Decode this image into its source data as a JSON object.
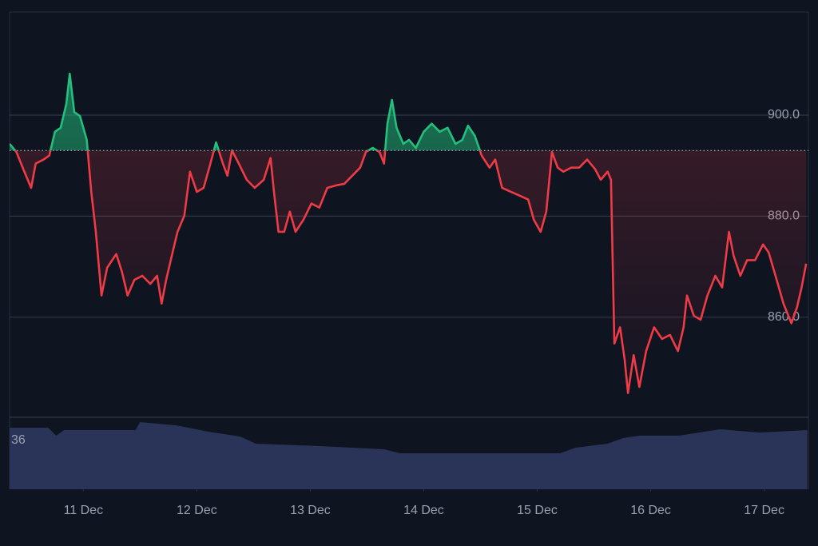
{
  "chart_data": {
    "type": "line",
    "x": [
      10.35,
      10.41,
      10.48,
      10.54,
      10.58,
      10.65,
      10.7,
      10.75,
      10.8,
      10.85,
      10.88,
      10.92,
      10.97,
      11.03,
      11.07,
      11.11,
      11.16,
      11.21,
      11.29,
      11.34,
      11.39,
      11.45,
      11.52,
      11.59,
      11.65,
      11.69,
      11.73,
      11.78,
      11.83,
      11.89,
      11.94,
      12.0,
      12.06,
      12.11,
      12.17,
      12.23,
      12.27,
      12.31,
      12.37,
      12.44,
      12.51,
      12.59,
      12.65,
      12.68,
      12.72,
      12.77,
      12.82,
      12.87,
      12.94,
      13.01,
      13.08,
      13.15,
      13.23,
      13.3,
      13.37,
      13.44,
      13.49,
      13.55,
      13.61,
      13.65,
      13.68,
      13.72,
      13.76,
      13.82,
      13.87,
      13.93,
      14.0,
      14.07,
      14.14,
      14.21,
      14.28,
      14.34,
      14.39,
      14.45,
      14.51,
      14.58,
      14.63,
      14.69,
      14.77,
      14.85,
      14.92,
      14.97,
      15.03,
      15.08,
      15.13,
      15.18,
      15.23,
      15.3,
      15.37,
      15.44,
      15.51,
      15.56,
      15.62,
      15.65,
      15.68,
      15.73,
      15.77,
      15.8,
      15.85,
      15.9,
      15.96,
      16.03,
      16.1,
      16.17,
      16.24,
      16.29,
      16.32,
      16.38,
      16.44,
      16.5,
      16.57,
      16.63,
      16.69,
      16.73,
      16.79,
      16.85,
      16.92,
      16.99,
      17.04,
      17.1,
      17.17,
      17.24,
      17.29,
      17.33,
      17.37
    ],
    "values": [
      894.3,
      892.7,
      888.8,
      885.6,
      890.4,
      891.2,
      892,
      896.7,
      897.5,
      902.2,
      908.2,
      900.6,
      899.8,
      895.1,
      884.8,
      876.9,
      864.3,
      869.8,
      872.5,
      869,
      864.3,
      867.4,
      868.2,
      866.6,
      868.2,
      862.7,
      867.4,
      872.2,
      876.9,
      880.1,
      888.8,
      884.8,
      885.6,
      889.6,
      894.6,
      890.4,
      888,
      893,
      890.4,
      887.2,
      885.6,
      887.2,
      891.5,
      884.8,
      876.9,
      876.9,
      880.9,
      876.9,
      879.3,
      882.5,
      881.7,
      885.6,
      886.1,
      886.4,
      888,
      889.6,
      892.7,
      893.5,
      892.7,
      890.4,
      898.3,
      903,
      897.5,
      894.3,
      895.1,
      893.5,
      896.7,
      898.3,
      896.7,
      897.5,
      894.3,
      895.1,
      897.9,
      895.9,
      892,
      889.6,
      891.2,
      885.6,
      884.8,
      884,
      883.3,
      879.3,
      876.9,
      880.9,
      892.7,
      889.6,
      888.8,
      889.6,
      889.6,
      891.2,
      889.3,
      887.2,
      888.8,
      887.2,
      854.8,
      858,
      851.7,
      845,
      852.5,
      846.2,
      853.3,
      858,
      855.7,
      856.5,
      853.3,
      858,
      864.3,
      860.3,
      859.5,
      864.3,
      868.2,
      865.9,
      876.9,
      872.2,
      868.2,
      871.3,
      871.3,
      874.4,
      872.8,
      868.2,
      862.7,
      858.8,
      862,
      865.9,
      870.6
    ],
    "baseline": 893,
    "up_color": "#22c07c",
    "down_color": "#ef3b45",
    "xlim": [
      10.35,
      17.39
    ],
    "xticks": [
      {
        "value": 11,
        "label": "11 Dec"
      },
      {
        "value": 12,
        "label": "12 Dec"
      },
      {
        "value": 13,
        "label": "13 Dec"
      },
      {
        "value": 14,
        "label": "14 Dec"
      },
      {
        "value": 15,
        "label": "15 Dec"
      },
      {
        "value": 16,
        "label": "16 Dec"
      },
      {
        "value": 17,
        "label": "17 Dec"
      }
    ],
    "ylim": [
      840.2,
      920.4
    ],
    "yticks": [
      {
        "value": 860,
        "label": "860.0"
      },
      {
        "value": 880,
        "label": "880.0"
      },
      {
        "value": 900,
        "label": "900.0"
      }
    ],
    "grid": true,
    "volume": {
      "label": "36",
      "color": "#2a3458",
      "ylim": [
        0,
        50
      ],
      "x": [
        10.35,
        10.69,
        10.76,
        10.83,
        11.46,
        11.5,
        11.82,
        12.1,
        12.38,
        12.52,
        13.08,
        13.65,
        13.79,
        14.14,
        15.2,
        15.34,
        15.62,
        15.76,
        15.9,
        16.25,
        16.61,
        16.96,
        17.38
      ],
      "values": [
        42.8,
        42.8,
        37.2,
        41.1,
        41.1,
        46.7,
        44.4,
        40,
        36.7,
        31.7,
        30,
        27.8,
        25,
        25,
        25,
        28.9,
        31.7,
        35.6,
        37.2,
        37.2,
        41.7,
        39.4,
        41.1
      ]
    }
  }
}
